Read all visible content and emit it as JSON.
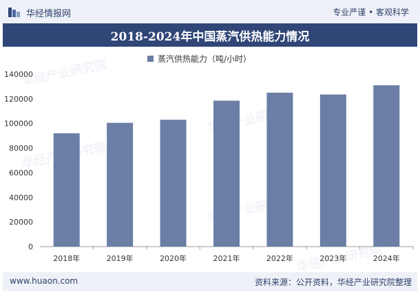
{
  "header": {
    "brand": "华经情报网",
    "slogan": "专业严谨 • 客观科学"
  },
  "title": "2018-2024年中国蒸汽供热能力情况",
  "legend": {
    "label": "蒸汽供热能力（吨/小时）"
  },
  "footer": {
    "url": "www.huaon.com",
    "source": "资料来源：公开资料，华经产业研究院整理"
  },
  "watermark": "华经产业研究院",
  "colors": {
    "bar": "#6b7ea6",
    "title_bg": "#2f4677",
    "band_bg": "#eef2f8"
  },
  "chart_data": {
    "type": "bar",
    "categories": [
      "2018年",
      "2019年",
      "2020年",
      "2021年",
      "2022年",
      "2023年",
      "2024年"
    ],
    "series": [
      {
        "name": "蒸汽供热能力（吨/小时）",
        "values": [
          92000,
          100500,
          103000,
          118500,
          125000,
          123500,
          131000
        ]
      }
    ],
    "ylim": [
      0,
      140000
    ],
    "yticks": [
      0,
      20000,
      40000,
      60000,
      80000,
      100000,
      120000,
      140000
    ],
    "ytick_labels": [
      "0",
      "20000",
      "40000",
      "60000",
      "80000",
      "100000",
      "120000",
      "140000"
    ],
    "grid": false,
    "legend_position": "top"
  }
}
